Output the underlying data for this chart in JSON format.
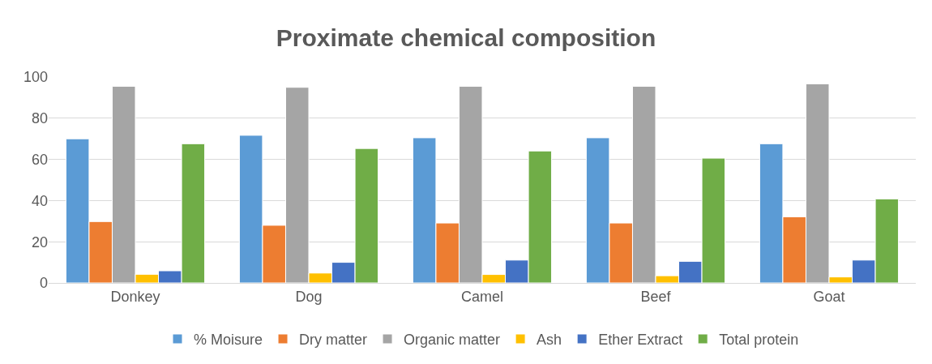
{
  "chart_data": {
    "type": "bar",
    "title": "Proximate chemical composition",
    "categories": [
      "Donkey",
      "Dog",
      "Camel",
      "Beef",
      "Goat"
    ],
    "series": [
      {
        "name": "% Moisure",
        "color": "#5b9bd5",
        "values": [
          70.0,
          71.7,
          70.5,
          70.5,
          67.6
        ]
      },
      {
        "name": "Dry matter",
        "color": "#ed7d31",
        "values": [
          29.8,
          28.0,
          29.1,
          29.1,
          32.1
        ]
      },
      {
        "name": "Organic matter",
        "color": "#a5a5a5",
        "values": [
          95.5,
          95.0,
          95.5,
          95.5,
          96.7
        ]
      },
      {
        "name": "Ash",
        "color": "#ffc000",
        "values": [
          4.2,
          4.8,
          4.1,
          3.5,
          2.9
        ]
      },
      {
        "name": "Ether Extract",
        "color": "#4472c4",
        "values": [
          5.9,
          10.0,
          11.1,
          10.5,
          11.1
        ]
      },
      {
        "name": "Total protein",
        "color": "#70ad47",
        "values": [
          67.6,
          65.3,
          64.1,
          60.6,
          40.8
        ]
      }
    ],
    "ylim": [
      0,
      100
    ],
    "yticks": [
      0,
      20,
      40,
      60,
      80,
      100
    ],
    "grid": "y",
    "legend": "bottom"
  }
}
